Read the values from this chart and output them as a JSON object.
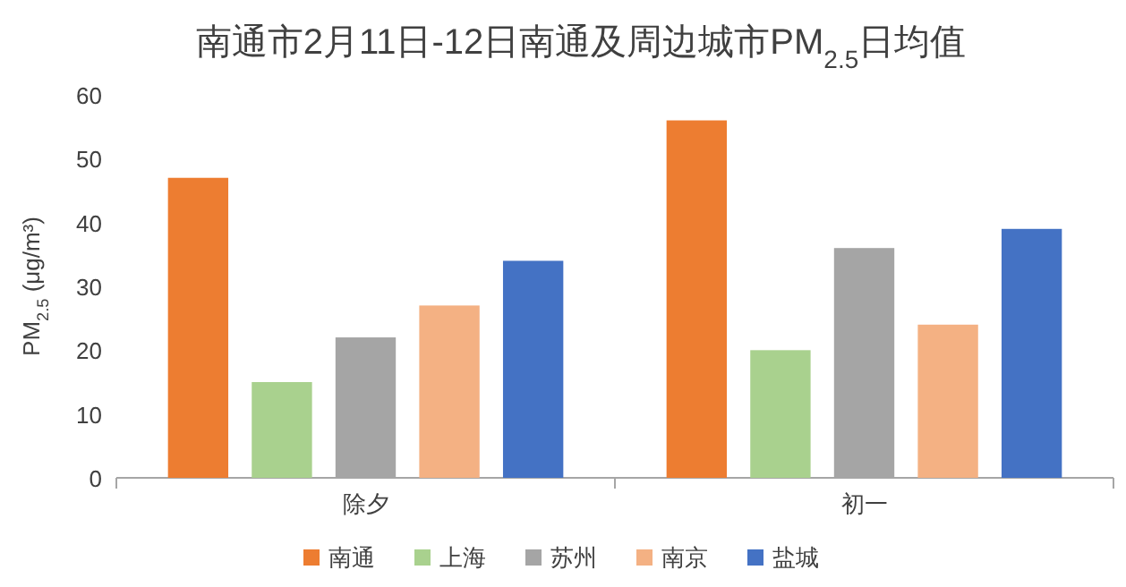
{
  "chart_data": {
    "type": "bar",
    "title": "南通市2月11日-12日南通及周边城市PM$_{2.5}$日均值",
    "ylabel": "PM$_{2.5}$ (μg/m³)",
    "categories": [
      "除夕",
      "初一"
    ],
    "series": [
      {
        "name": "南通",
        "color": "#ed7d31",
        "values": [
          47,
          56
        ]
      },
      {
        "name": "上海",
        "color": "#a9d18e",
        "values": [
          15,
          20
        ]
      },
      {
        "name": "苏州",
        "color": "#a5a5a5",
        "values": [
          22,
          36
        ]
      },
      {
        "name": "南京",
        "color": "#f4b183",
        "values": [
          27,
          24
        ]
      },
      {
        "name": "盐城",
        "color": "#4472c4",
        "values": [
          34,
          39
        ]
      }
    ],
    "ylim": [
      0,
      60
    ],
    "yticks": [
      0,
      10,
      20,
      30,
      40,
      50,
      60
    ],
    "legend": "bottom"
  }
}
